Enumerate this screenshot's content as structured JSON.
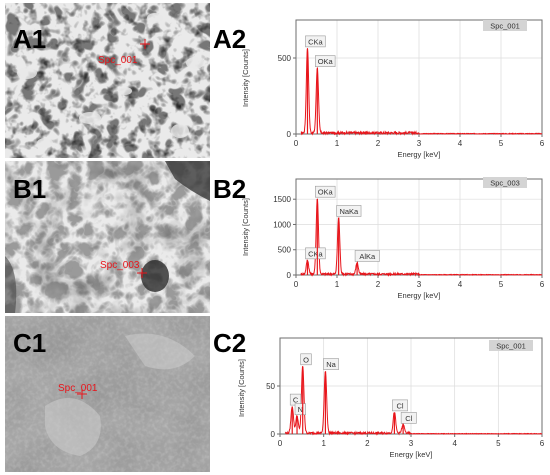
{
  "panels": {
    "A1": {
      "label": "A1",
      "marker": "Spc_001"
    },
    "B1": {
      "label": "B1",
      "marker": "Spc_003"
    },
    "C1": {
      "label": "C1",
      "marker": "Spc_001"
    },
    "A2": {
      "label": "A2"
    },
    "B2": {
      "label": "B2"
    },
    "C2": {
      "label": "C2"
    }
  },
  "colors": {
    "spectrum": "#e8151b",
    "marker": "#e8151b",
    "label_box": "#d4d4d4"
  },
  "chart_data": [
    {
      "id": "A2",
      "type": "line",
      "spectrum_name": "Spc_001",
      "xlabel": "Energy [keV]",
      "ylabel": "Intensity [Counts]",
      "xlim": [
        0,
        6
      ],
      "ylim": [
        0,
        750
      ],
      "xticks": [
        "0",
        "1",
        "2",
        "3",
        "4",
        "5",
        "6"
      ],
      "yticks": [
        {
          "v": 0,
          "t": "0"
        },
        {
          "v": 500,
          "t": "500"
        }
      ],
      "peaks": [
        {
          "x": 0.28,
          "y": 560,
          "label": "CKa"
        },
        {
          "x": 0.52,
          "y": 430,
          "label": "OKa"
        }
      ]
    },
    {
      "id": "B2",
      "type": "line",
      "spectrum_name": "Spc_003",
      "xlabel": "Energy [keV]",
      "ylabel": "Intensity [Counts]",
      "xlim": [
        0,
        6
      ],
      "ylim": [
        0,
        1900
      ],
      "xticks": [
        "0",
        "1",
        "2",
        "3",
        "4",
        "5",
        "6"
      ],
      "yticks": [
        {
          "v": 0,
          "t": "0"
        },
        {
          "v": 500,
          "t": "500"
        },
        {
          "v": 1000,
          "t": "1000"
        },
        {
          "v": 1500,
          "t": "1500"
        }
      ],
      "peaks": [
        {
          "x": 0.28,
          "y": 280,
          "label": "CKa"
        },
        {
          "x": 0.52,
          "y": 1500,
          "label": "OKa"
        },
        {
          "x": 1.04,
          "y": 1120,
          "label": "NaKa"
        },
        {
          "x": 1.49,
          "y": 230,
          "label": "AlKa"
        }
      ]
    },
    {
      "id": "C2",
      "type": "line",
      "spectrum_name": "Spc_001",
      "xlabel": "Energy [keV]",
      "ylabel": "Intensity [Counts]",
      "xlim": [
        0,
        6
      ],
      "ylim": [
        0,
        100
      ],
      "xticks": [
        "0",
        "1",
        "2",
        "3",
        "4",
        "5",
        "6"
      ],
      "yticks": [
        {
          "v": 0,
          "t": "0"
        },
        {
          "v": 50,
          "t": "50"
        }
      ],
      "peaks": [
        {
          "x": 0.28,
          "y": 28,
          "label": "C"
        },
        {
          "x": 0.39,
          "y": 18,
          "label": "N"
        },
        {
          "x": 0.52,
          "y": 70,
          "label": "O"
        },
        {
          "x": 1.04,
          "y": 65,
          "label": "Na"
        },
        {
          "x": 2.62,
          "y": 22,
          "label": "Cl"
        },
        {
          "x": 2.82,
          "y": 9,
          "label": "Cl"
        }
      ]
    }
  ]
}
